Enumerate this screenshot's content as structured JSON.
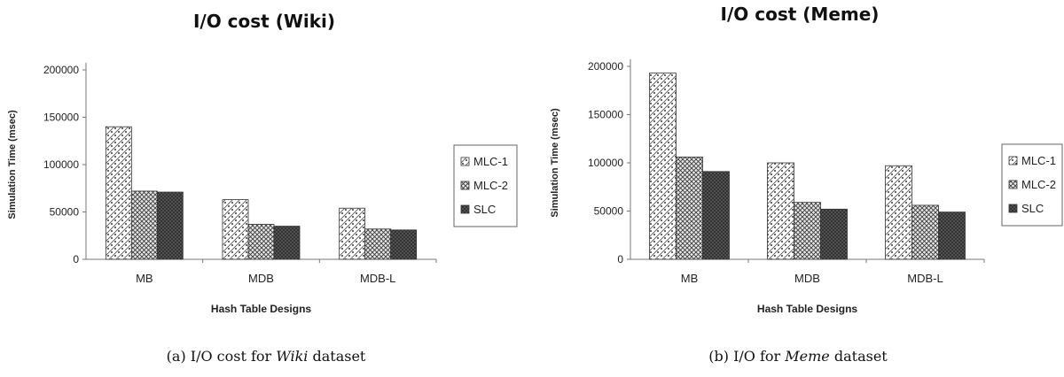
{
  "chart_data": [
    {
      "type": "bar",
      "title": "I/O cost (Wiki)",
      "xlabel": "Hash Table Designs",
      "ylabel": "Simulation Time (msec)",
      "ylim": [
        0,
        200000
      ],
      "yticks": [
        "0",
        "50000",
        "100000",
        "150000",
        "200000"
      ],
      "categories": [
        "MB",
        "MDB",
        "MDB-L"
      ],
      "series": [
        {
          "name": "MLC-1",
          "values": [
            140000,
            63000,
            54000
          ]
        },
        {
          "name": "MLC-2",
          "values": [
            72000,
            37000,
            32000
          ]
        },
        {
          "name": "SLC",
          "values": [
            71000,
            35000,
            31000
          ]
        }
      ],
      "legend": "right",
      "grid": false,
      "caption": {
        "prefix": "(a) I/O cost for ",
        "emph": "Wiki",
        "suffix": " dataset"
      }
    },
    {
      "type": "bar",
      "title": "I/O cost (Meme)",
      "xlabel": "Hash Table Designs",
      "ylabel": "Simulation Time (msec)",
      "ylim": [
        0,
        200000
      ],
      "yticks": [
        "0",
        "50000",
        "100000",
        "150000",
        "200000"
      ],
      "categories": [
        "MB",
        "MDB",
        "MDB-L"
      ],
      "series": [
        {
          "name": "MLC-1",
          "values": [
            193000,
            100000,
            97000
          ]
        },
        {
          "name": "MLC-2",
          "values": [
            106000,
            59000,
            56000
          ]
        },
        {
          "name": "SLC",
          "values": [
            91000,
            52000,
            49000
          ]
        }
      ],
      "legend": "right",
      "grid": false,
      "caption": {
        "prefix": "(b) I/O for ",
        "emph": "Meme",
        "suffix": " dataset"
      }
    }
  ]
}
